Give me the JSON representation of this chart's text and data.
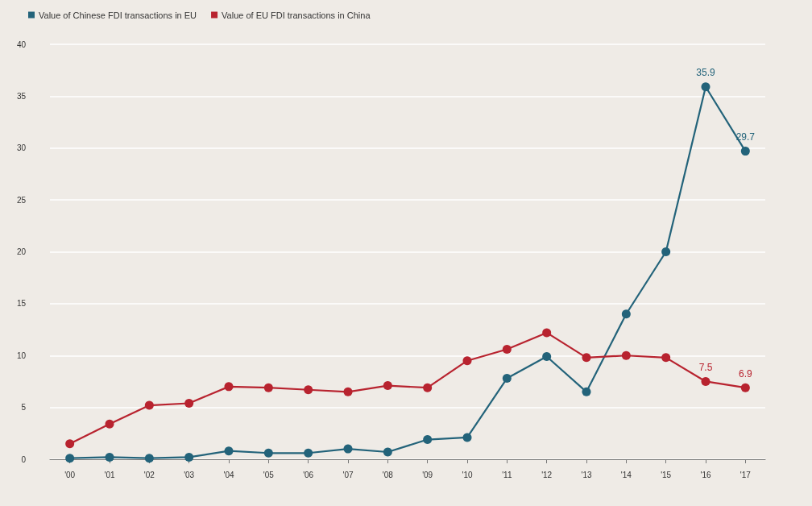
{
  "chart_data": {
    "type": "line",
    "categories": [
      "'00",
      "'01",
      "'02",
      "'03",
      "'04",
      "'05",
      "'06",
      "'07",
      "'08",
      "'09",
      "'10",
      "'11",
      "'12",
      "'13",
      "'14",
      "'15",
      "'16",
      "'17"
    ],
    "series": [
      {
        "name": "Value of Chinese FDI transactions in EU",
        "color": "#23637a",
        "values": [
          0.1,
          0.2,
          0.1,
          0.2,
          0.8,
          0.6,
          0.6,
          1.0,
          0.7,
          1.9,
          2.1,
          7.8,
          9.9,
          6.5,
          14.0,
          20.0,
          35.9,
          29.7
        ],
        "value_labels": [
          null,
          null,
          null,
          null,
          null,
          null,
          null,
          null,
          null,
          null,
          null,
          null,
          null,
          null,
          null,
          null,
          "35.9",
          "29.7"
        ]
      },
      {
        "name": "Value of EU FDI transactions in China",
        "color": "#b8232f",
        "values": [
          1.5,
          3.4,
          5.2,
          5.4,
          7.0,
          6.9,
          6.7,
          6.5,
          7.1,
          6.9,
          9.5,
          10.6,
          12.2,
          9.8,
          10.0,
          9.8,
          7.5,
          6.9
        ],
        "value_labels": [
          null,
          null,
          null,
          null,
          null,
          null,
          null,
          null,
          null,
          null,
          null,
          null,
          null,
          null,
          null,
          null,
          "7.5",
          "6.9"
        ]
      }
    ],
    "ylim": [
      0,
      40
    ],
    "yticks": [
      0,
      5,
      10,
      15,
      20,
      25,
      30,
      35,
      40
    ],
    "grid": "y",
    "legend": "top left",
    "marker": "circle",
    "line_style": "solid"
  }
}
